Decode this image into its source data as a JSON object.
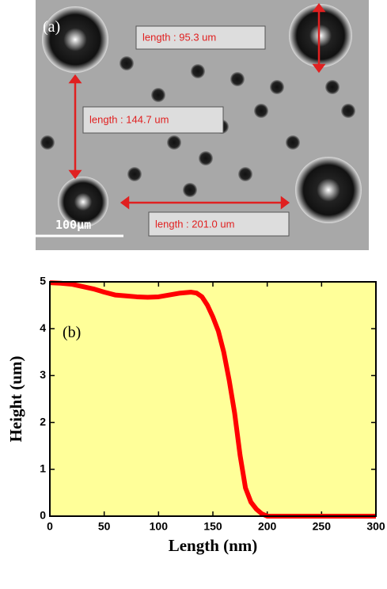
{
  "image_panel": {
    "panel_label": "(a)",
    "scale_bar": "100μm",
    "measurements": [
      "length : 95.3 um",
      "length : 144.7 um",
      "length : 201.0 um"
    ]
  },
  "chart_data": {
    "type": "line",
    "panel_label": "(b)",
    "x_label": "Length (nm)",
    "y_label": "Height (um)",
    "x": [
      0,
      10,
      20,
      30,
      40,
      50,
      60,
      70,
      80,
      90,
      100,
      110,
      120,
      130,
      135,
      140,
      145,
      150,
      155,
      160,
      165,
      170,
      175,
      180,
      185,
      190,
      195,
      200,
      210,
      250,
      300
    ],
    "series": [
      {
        "color": "#ff0000",
        "values": [
          4.98,
          4.97,
          4.95,
          4.9,
          4.85,
          4.78,
          4.72,
          4.7,
          4.68,
          4.67,
          4.68,
          4.72,
          4.76,
          4.78,
          4.76,
          4.68,
          4.5,
          4.25,
          3.95,
          3.5,
          2.9,
          2.2,
          1.3,
          0.6,
          0.3,
          0.15,
          0.05,
          0,
          0,
          0,
          0
        ]
      }
    ],
    "xlim": [
      0,
      300
    ],
    "ylim": [
      0,
      5
    ],
    "xticks": [
      0,
      50,
      100,
      150,
      200,
      250,
      300
    ],
    "yticks": [
      0,
      1,
      2,
      3,
      4,
      5
    ],
    "background": "#ffff99"
  }
}
